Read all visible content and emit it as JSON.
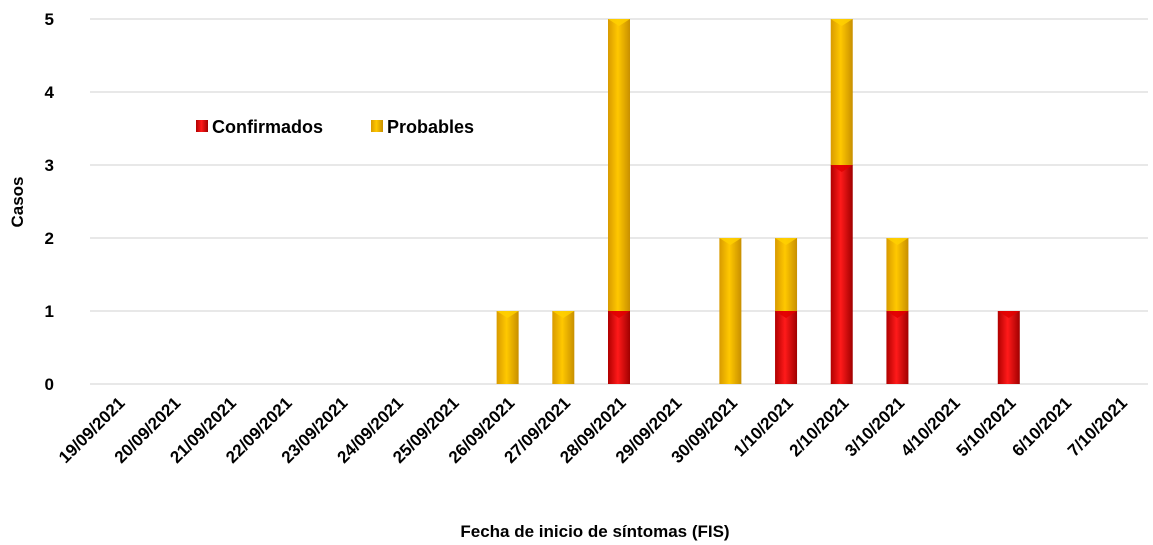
{
  "chart_data": {
    "type": "bar",
    "stacked": true,
    "title": "",
    "xlabel": "Fecha de inicio de síntomas (FIS)",
    "ylabel": "Casos",
    "ylim": [
      0,
      5
    ],
    "yticks": [
      "0",
      "1",
      "2",
      "3",
      "4",
      "5"
    ],
    "grid": true,
    "legend_position": "upper-left inside plot",
    "categories": [
      "19/09/2021",
      "20/09/2021",
      "21/09/2021",
      "22/09/2021",
      "23/09/2021",
      "24/09/2021",
      "25/09/2021",
      "26/09/2021",
      "27/09/2021",
      "28/09/2021",
      "29/09/2021",
      "30/09/2021",
      "1/10/2021",
      "2/10/2021",
      "3/10/2021",
      "4/10/2021",
      "5/10/2021",
      "6/10/2021",
      "7/10/2021"
    ],
    "series": [
      {
        "name": "Confirmados",
        "color": "#ff0000",
        "values": [
          0,
          0,
          0,
          0,
          0,
          0,
          0,
          0,
          0,
          1,
          0,
          0,
          1,
          3,
          1,
          0,
          1,
          0,
          0
        ]
      },
      {
        "name": "Probables",
        "color": "#ffc000",
        "values": [
          0,
          0,
          0,
          0,
          0,
          0,
          0,
          1,
          1,
          4,
          0,
          2,
          1,
          2,
          1,
          0,
          0,
          0,
          0
        ]
      }
    ]
  }
}
